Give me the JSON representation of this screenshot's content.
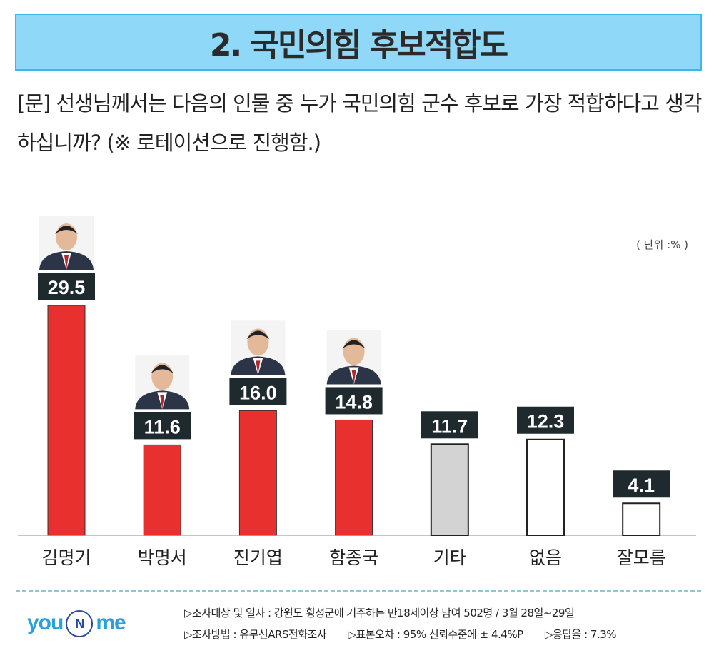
{
  "title": "2. 국민의힘 후보적합도",
  "question": "[문] 선생님께서는 다음의 인물 중 누가 국민의힘 군수 후보로 가장 적합하다고 생각하십니까? (※ 로테이션으로 진행함.)",
  "unit": "( 단위 :% )",
  "chart_data": {
    "type": "bar",
    "title": "2. 국민의힘 후보적합도",
    "categories": [
      "김명기",
      "박명서",
      "진기엽",
      "함종국",
      "기타",
      "없음",
      "잘모름"
    ],
    "values": [
      29.5,
      11.6,
      16.0,
      14.8,
      11.7,
      12.3,
      4.1
    ],
    "value_labels": [
      "29.5",
      "11.6",
      "16.0",
      "14.8",
      "11.7",
      "12.3",
      "4.1"
    ],
    "bar_styles": [
      "candidate",
      "candidate",
      "candidate",
      "candidate",
      "other",
      "none",
      "none"
    ],
    "has_photo": [
      true,
      true,
      true,
      true,
      false,
      false,
      false
    ],
    "ylabel": "%",
    "ylim": [
      0,
      30
    ],
    "grid": false
  },
  "colors": {
    "candidate": "#e8302e",
    "other": "#d3d3d3",
    "none": "#ffffff",
    "label_bg": "#1f2a2e",
    "title_bg": "#8fd8f7"
  },
  "logo": {
    "you": "you",
    "n": "N",
    "me": "me"
  },
  "footer": {
    "line1": [
      "▷조사대상 및 일자 : 강원도 횡성군에 거주하는 만18세이상 남여 502명  /  3월 28일~29일"
    ],
    "line2": [
      "▷조사방법 : 유무선ARS전화조사",
      "▷표본오차 : 95% 신뢰수준에 ± 4.4%P",
      "▷응답율 : 7.3%"
    ]
  }
}
